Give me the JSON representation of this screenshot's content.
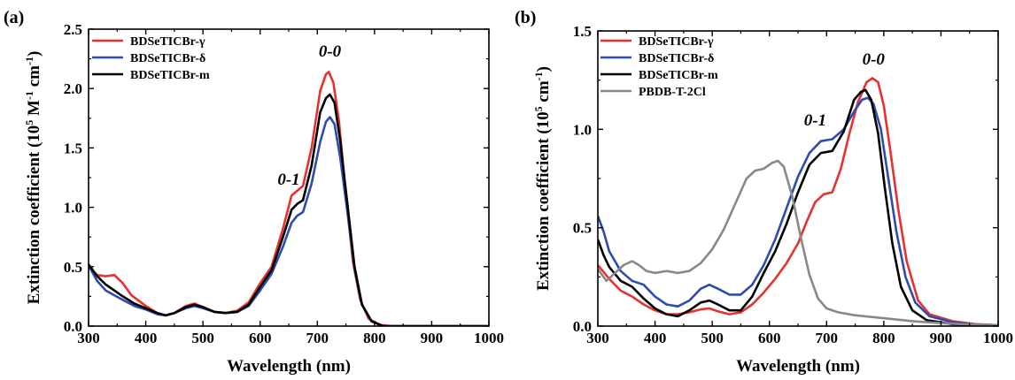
{
  "chart_data": [
    {
      "panel_label": "(a)",
      "type": "line",
      "xlabel": "Wavelength (nm)",
      "ylabel": {
        "pre": "Extinction coefficient (10",
        "sup1": "5",
        "mid": " M",
        "sup2": "-1",
        "mid2": " cm",
        "sup3": "-1",
        "post": ")"
      },
      "xlim": [
        300,
        1000
      ],
      "ylim": [
        0,
        2.5
      ],
      "xticks": [
        300,
        400,
        500,
        600,
        700,
        800,
        900,
        1000
      ],
      "yticks": [
        0.0,
        0.5,
        1.0,
        1.5,
        2.0,
        2.5
      ],
      "ytick_labels": [
        "0.0",
        "0.5",
        "1.0",
        "1.5",
        "2.0",
        "2.5"
      ],
      "legend_position": "top-left",
      "annotations": [
        {
          "text": "0-0",
          "x": 722,
          "y": 2.27
        },
        {
          "text": "0-1",
          "x": 650,
          "y": 1.19
        }
      ],
      "series": [
        {
          "name": "BDSeTICBr-γ",
          "color": "#e8302e",
          "points": [
            [
              300,
              0.5
            ],
            [
              315,
              0.43
            ],
            [
              330,
              0.42
            ],
            [
              345,
              0.43
            ],
            [
              360,
              0.36
            ],
            [
              375,
              0.26
            ],
            [
              400,
              0.17
            ],
            [
              420,
              0.11
            ],
            [
              435,
              0.09
            ],
            [
              450,
              0.11
            ],
            [
              470,
              0.17
            ],
            [
              485,
              0.19
            ],
            [
              500,
              0.16
            ],
            [
              520,
              0.12
            ],
            [
              540,
              0.11
            ],
            [
              560,
              0.13
            ],
            [
              580,
              0.2
            ],
            [
              600,
              0.36
            ],
            [
              620,
              0.5
            ],
            [
              640,
              0.82
            ],
            [
              655,
              1.1
            ],
            [
              665,
              1.14
            ],
            [
              675,
              1.18
            ],
            [
              690,
              1.5
            ],
            [
              705,
              1.98
            ],
            [
              715,
              2.12
            ],
            [
              720,
              2.14
            ],
            [
              728,
              2.05
            ],
            [
              738,
              1.72
            ],
            [
              750,
              1.1
            ],
            [
              762,
              0.55
            ],
            [
              775,
              0.22
            ],
            [
              790,
              0.06
            ],
            [
              810,
              0.01
            ],
            [
              830,
              0.0
            ],
            [
              1000,
              0.0
            ]
          ]
        },
        {
          "name": "BDSeTICBr-δ",
          "color": "#2f4bb1",
          "points": [
            [
              300,
              0.51
            ],
            [
              315,
              0.38
            ],
            [
              330,
              0.3
            ],
            [
              345,
              0.26
            ],
            [
              360,
              0.22
            ],
            [
              380,
              0.17
            ],
            [
              400,
              0.14
            ],
            [
              420,
              0.1
            ],
            [
              435,
              0.09
            ],
            [
              450,
              0.11
            ],
            [
              470,
              0.15
            ],
            [
              485,
              0.17
            ],
            [
              500,
              0.15
            ],
            [
              520,
              0.12
            ],
            [
              540,
              0.11
            ],
            [
              560,
              0.12
            ],
            [
              580,
              0.17
            ],
            [
              600,
              0.3
            ],
            [
              620,
              0.44
            ],
            [
              640,
              0.67
            ],
            [
              655,
              0.87
            ],
            [
              665,
              0.93
            ],
            [
              675,
              0.96
            ],
            [
              690,
              1.2
            ],
            [
              705,
              1.55
            ],
            [
              715,
              1.72
            ],
            [
              722,
              1.76
            ],
            [
              730,
              1.7
            ],
            [
              740,
              1.42
            ],
            [
              752,
              0.98
            ],
            [
              765,
              0.48
            ],
            [
              778,
              0.18
            ],
            [
              795,
              0.04
            ],
            [
              815,
              0.0
            ],
            [
              1000,
              0.0
            ]
          ]
        },
        {
          "name": "BDSeTICBr-m",
          "color": "#000000",
          "points": [
            [
              300,
              0.52
            ],
            [
              315,
              0.42
            ],
            [
              330,
              0.35
            ],
            [
              345,
              0.3
            ],
            [
              360,
              0.25
            ],
            [
              380,
              0.19
            ],
            [
              400,
              0.15
            ],
            [
              420,
              0.11
            ],
            [
              435,
              0.09
            ],
            [
              450,
              0.11
            ],
            [
              470,
              0.16
            ],
            [
              485,
              0.18
            ],
            [
              500,
              0.16
            ],
            [
              520,
              0.12
            ],
            [
              540,
              0.11
            ],
            [
              560,
              0.12
            ],
            [
              580,
              0.18
            ],
            [
              600,
              0.33
            ],
            [
              620,
              0.47
            ],
            [
              640,
              0.75
            ],
            [
              655,
              0.98
            ],
            [
              665,
              1.03
            ],
            [
              675,
              1.06
            ],
            [
              690,
              1.35
            ],
            [
              705,
              1.8
            ],
            [
              715,
              1.92
            ],
            [
              722,
              1.95
            ],
            [
              730,
              1.88
            ],
            [
              740,
              1.56
            ],
            [
              752,
              1.05
            ],
            [
              765,
              0.5
            ],
            [
              778,
              0.18
            ],
            [
              795,
              0.04
            ],
            [
              815,
              0.0
            ],
            [
              1000,
              0.0
            ]
          ]
        }
      ]
    },
    {
      "panel_label": "(b)",
      "type": "line",
      "xlabel": "Wavelength (nm)",
      "ylabel": {
        "pre": "Extinction coefficient (10",
        "sup1": "5",
        "mid": " cm",
        "sup2": "-1",
        "mid2": "",
        "sup3": "",
        "post": ")"
      },
      "xlim": [
        300,
        1000
      ],
      "ylim": [
        0,
        1.5
      ],
      "xticks": [
        300,
        400,
        500,
        600,
        700,
        800,
        900,
        1000
      ],
      "yticks": [
        0.0,
        0.5,
        1.0,
        1.5
      ],
      "ytick_labels": [
        "0.0",
        "0.5",
        "1.0",
        "1.5"
      ],
      "legend_position": "top-left",
      "annotations": [
        {
          "text": "0-0",
          "x": 782,
          "y": 1.33
        },
        {
          "text": "0-1",
          "x": 680,
          "y": 1.02
        }
      ],
      "series": [
        {
          "name": "BDSeTICBr-γ",
          "color": "#e8302e",
          "points": [
            [
              300,
              0.31
            ],
            [
              320,
              0.24
            ],
            [
              340,
              0.18
            ],
            [
              360,
              0.15
            ],
            [
              380,
              0.11
            ],
            [
              400,
              0.08
            ],
            [
              420,
              0.06
            ],
            [
              440,
              0.06
            ],
            [
              460,
              0.07
            ],
            [
              480,
              0.085
            ],
            [
              495,
              0.09
            ],
            [
              510,
              0.075
            ],
            [
              530,
              0.06
            ],
            [
              550,
              0.07
            ],
            [
              570,
              0.11
            ],
            [
              590,
              0.17
            ],
            [
              610,
              0.24
            ],
            [
              630,
              0.32
            ],
            [
              650,
              0.42
            ],
            [
              665,
              0.53
            ],
            [
              680,
              0.63
            ],
            [
              695,
              0.67
            ],
            [
              710,
              0.68
            ],
            [
              725,
              0.8
            ],
            [
              740,
              0.98
            ],
            [
              755,
              1.14
            ],
            [
              770,
              1.24
            ],
            [
              780,
              1.26
            ],
            [
              790,
              1.24
            ],
            [
              800,
              1.12
            ],
            [
              812,
              0.88
            ],
            [
              825,
              0.6
            ],
            [
              840,
              0.33
            ],
            [
              860,
              0.13
            ],
            [
              880,
              0.06
            ],
            [
              920,
              0.025
            ],
            [
              960,
              0.01
            ],
            [
              1000,
              0.005
            ]
          ]
        },
        {
          "name": "BDSeTICBr-δ",
          "color": "#2f4bb1",
          "points": [
            [
              300,
              0.56
            ],
            [
              310,
              0.48
            ],
            [
              320,
              0.38
            ],
            [
              340,
              0.28
            ],
            [
              360,
              0.23
            ],
            [
              380,
              0.21
            ],
            [
              400,
              0.15
            ],
            [
              420,
              0.11
            ],
            [
              440,
              0.1
            ],
            [
              460,
              0.13
            ],
            [
              480,
              0.19
            ],
            [
              495,
              0.21
            ],
            [
              510,
              0.19
            ],
            [
              530,
              0.16
            ],
            [
              550,
              0.16
            ],
            [
              570,
              0.21
            ],
            [
              590,
              0.31
            ],
            [
              610,
              0.44
            ],
            [
              630,
              0.6
            ],
            [
              650,
              0.76
            ],
            [
              670,
              0.88
            ],
            [
              690,
              0.94
            ],
            [
              710,
              0.95
            ],
            [
              730,
              1.0
            ],
            [
              750,
              1.1
            ],
            [
              762,
              1.15
            ],
            [
              772,
              1.16
            ],
            [
              782,
              1.13
            ],
            [
              795,
              1.0
            ],
            [
              808,
              0.75
            ],
            [
              822,
              0.48
            ],
            [
              838,
              0.25
            ],
            [
              855,
              0.12
            ],
            [
              880,
              0.05
            ],
            [
              920,
              0.02
            ],
            [
              960,
              0.008
            ],
            [
              1000,
              0.004
            ]
          ]
        },
        {
          "name": "BDSeTICBr-m",
          "color": "#000000",
          "points": [
            [
              300,
              0.44
            ],
            [
              310,
              0.36
            ],
            [
              320,
              0.3
            ],
            [
              340,
              0.23
            ],
            [
              360,
              0.2
            ],
            [
              380,
              0.14
            ],
            [
              400,
              0.09
            ],
            [
              420,
              0.06
            ],
            [
              440,
              0.05
            ],
            [
              460,
              0.08
            ],
            [
              480,
              0.12
            ],
            [
              495,
              0.13
            ],
            [
              510,
              0.11
            ],
            [
              530,
              0.08
            ],
            [
              550,
              0.08
            ],
            [
              570,
              0.15
            ],
            [
              590,
              0.27
            ],
            [
              610,
              0.38
            ],
            [
              630,
              0.52
            ],
            [
              650,
              0.68
            ],
            [
              670,
              0.82
            ],
            [
              690,
              0.88
            ],
            [
              710,
              0.89
            ],
            [
              730,
              0.99
            ],
            [
              748,
              1.15
            ],
            [
              760,
              1.19
            ],
            [
              768,
              1.2
            ],
            [
              778,
              1.15
            ],
            [
              790,
              0.98
            ],
            [
              802,
              0.7
            ],
            [
              815,
              0.42
            ],
            [
              830,
              0.2
            ],
            [
              850,
              0.08
            ],
            [
              875,
              0.03
            ],
            [
              920,
              0.01
            ],
            [
              1000,
              0.003
            ]
          ]
        },
        {
          "name": "PBDB-T-2Cl",
          "color": "#888888",
          "points": [
            [
              300,
              0.29
            ],
            [
              315,
              0.23
            ],
            [
              330,
              0.27
            ],
            [
              345,
              0.31
            ],
            [
              360,
              0.33
            ],
            [
              372,
              0.31
            ],
            [
              385,
              0.28
            ],
            [
              400,
              0.27
            ],
            [
              420,
              0.28
            ],
            [
              440,
              0.27
            ],
            [
              460,
              0.28
            ],
            [
              480,
              0.32
            ],
            [
              500,
              0.39
            ],
            [
              520,
              0.49
            ],
            [
              540,
              0.62
            ],
            [
              560,
              0.75
            ],
            [
              575,
              0.79
            ],
            [
              590,
              0.8
            ],
            [
              605,
              0.83
            ],
            [
              615,
              0.84
            ],
            [
              625,
              0.81
            ],
            [
              640,
              0.66
            ],
            [
              655,
              0.45
            ],
            [
              670,
              0.26
            ],
            [
              685,
              0.14
            ],
            [
              700,
              0.09
            ],
            [
              720,
              0.07
            ],
            [
              750,
              0.055
            ],
            [
              800,
              0.04
            ],
            [
              850,
              0.025
            ],
            [
              900,
              0.015
            ],
            [
              950,
              0.008
            ],
            [
              1000,
              0.005
            ]
          ]
        }
      ]
    }
  ]
}
